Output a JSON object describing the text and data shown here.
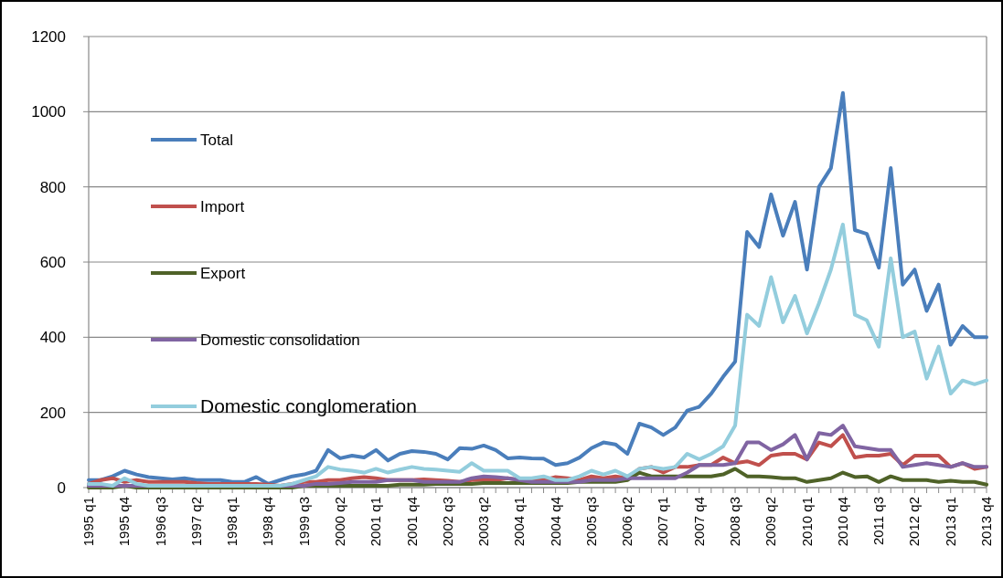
{
  "chart_data": {
    "type": "line",
    "categories": [
      "1995 q1",
      null,
      null,
      "1995 q4",
      null,
      null,
      "1996 q3",
      null,
      null,
      "1997 q2",
      null,
      null,
      "1998 q1",
      null,
      null,
      "1998 q4",
      null,
      null,
      "1999 q3",
      null,
      null,
      "2000 q2",
      null,
      null,
      "2001 q1",
      null,
      null,
      "2001 q4",
      null,
      null,
      "2002 q3",
      null,
      null,
      "2003 q2",
      null,
      null,
      "2004 q1",
      null,
      null,
      "2004 q4",
      null,
      null,
      "2005 q3",
      null,
      null,
      "2006 q2",
      null,
      null,
      "2007 q1",
      null,
      null,
      "2007 q4",
      null,
      null,
      "2008 q3",
      null,
      null,
      "2009 q2",
      null,
      null,
      "2010 q1",
      null,
      null,
      "2010 q4",
      null,
      null,
      "2011 q3",
      null,
      null,
      "2012 q2",
      null,
      null,
      "2013 q1",
      null,
      null,
      "2013 q4"
    ],
    "series": [
      {
        "name": "Total",
        "color": "#4a7ebb",
        "values": [
          20,
          20,
          30,
          45,
          35,
          28,
          25,
          22,
          25,
          20,
          20,
          20,
          15,
          15,
          28,
          10,
          20,
          30,
          35,
          45,
          100,
          78,
          85,
          80,
          100,
          72,
          90,
          97,
          95,
          90,
          75,
          105,
          103,
          112,
          100,
          78,
          80,
          78,
          77,
          60,
          65,
          80,
          105,
          120,
          115,
          90,
          170,
          160,
          140,
          160,
          205,
          215,
          250,
          295,
          335,
          680,
          640,
          780,
          670,
          760,
          580,
          800,
          850,
          1050,
          685,
          675,
          585,
          850,
          540,
          580,
          470,
          540,
          380,
          430,
          400,
          400
        ]
      },
      {
        "name": "Import",
        "color": "#c0504d",
        "values": [
          10,
          20,
          25,
          15,
          20,
          15,
          15,
          15,
          15,
          12,
          10,
          10,
          10,
          10,
          10,
          8,
          5,
          10,
          15,
          15,
          20,
          20,
          25,
          28,
          25,
          20,
          20,
          20,
          22,
          20,
          18,
          15,
          20,
          20,
          20,
          25,
          20,
          20,
          20,
          28,
          25,
          20,
          30,
          25,
          30,
          25,
          50,
          55,
          40,
          55,
          55,
          60,
          60,
          80,
          65,
          70,
          60,
          85,
          90,
          90,
          75,
          120,
          110,
          140,
          80,
          85,
          85,
          90,
          60,
          85,
          85,
          85,
          55,
          65,
          50,
          55
        ]
      },
      {
        "name": "Export",
        "color": "#4f6228",
        "values": [
          0,
          0,
          0,
          5,
          0,
          0,
          0,
          0,
          0,
          0,
          0,
          0,
          0,
          0,
          0,
          0,
          0,
          0,
          5,
          5,
          5,
          5,
          5,
          5,
          5,
          5,
          8,
          8,
          8,
          10,
          10,
          10,
          10,
          12,
          12,
          12,
          12,
          12,
          12,
          12,
          12,
          15,
          15,
          15,
          15,
          20,
          40,
          30,
          30,
          30,
          30,
          30,
          30,
          35,
          50,
          30,
          30,
          28,
          25,
          25,
          15,
          20,
          25,
          40,
          28,
          30,
          15,
          30,
          20,
          20,
          20,
          15,
          18,
          15,
          15,
          8
        ]
      },
      {
        "name": "Domestic consolidation",
        "color": "#8064a2",
        "values": [
          5,
          5,
          5,
          5,
          5,
          5,
          5,
          5,
          5,
          5,
          5,
          5,
          5,
          5,
          5,
          5,
          5,
          5,
          5,
          10,
          10,
          12,
          15,
          15,
          15,
          20,
          20,
          20,
          15,
          15,
          15,
          15,
          25,
          30,
          28,
          25,
          20,
          15,
          15,
          15,
          15,
          15,
          20,
          20,
          20,
          25,
          25,
          25,
          25,
          25,
          40,
          60,
          60,
          60,
          65,
          120,
          120,
          100,
          115,
          140,
          75,
          145,
          140,
          165,
          110,
          105,
          100,
          100,
          55,
          60,
          65,
          60,
          55,
          65,
          55,
          55
        ]
      },
      {
        "name": "Domestic conglomeration",
        "color": "#93cddd",
        "values": [
          10,
          10,
          5,
          25,
          10,
          5,
          5,
          5,
          5,
          5,
          5,
          5,
          5,
          5,
          5,
          5,
          5,
          10,
          20,
          30,
          55,
          48,
          45,
          40,
          50,
          40,
          48,
          55,
          50,
          48,
          45,
          42,
          65,
          45,
          45,
          45,
          25,
          25,
          30,
          20,
          20,
          30,
          45,
          35,
          45,
          30,
          50,
          55,
          50,
          55,
          90,
          75,
          90,
          110,
          165,
          460,
          430,
          560,
          440,
          510,
          410,
          490,
          580,
          700,
          460,
          445,
          375,
          610,
          400,
          415,
          290,
          375,
          250,
          285,
          275,
          285
        ]
      }
    ],
    "ylim": [
      0,
      1200
    ],
    "yticks": [
      0,
      200,
      400,
      600,
      800,
      1000,
      1200
    ],
    "grid": "y",
    "legend": "left",
    "marker": "none",
    "line_style": "solid"
  }
}
